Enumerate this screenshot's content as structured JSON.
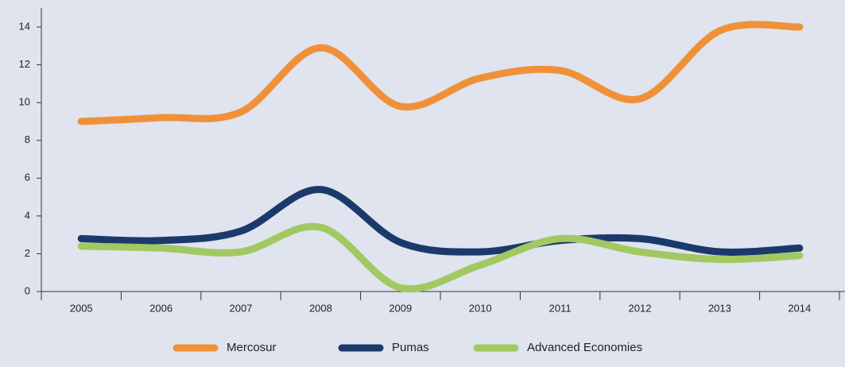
{
  "chart_data": {
    "type": "line",
    "categories": [
      "2005",
      "2006",
      "2007",
      "2008",
      "2009",
      "2010",
      "2011",
      "2012",
      "2013",
      "2014"
    ],
    "series": [
      {
        "name": "Mercosur",
        "color": "#f0913a",
        "values": [
          9.0,
          9.2,
          9.5,
          12.9,
          9.8,
          11.3,
          11.7,
          10.2,
          13.8,
          14.0
        ]
      },
      {
        "name": "Pumas",
        "color": "#1b3a6b",
        "values": [
          2.8,
          2.7,
          3.2,
          5.4,
          2.6,
          2.1,
          2.7,
          2.8,
          2.1,
          2.3
        ]
      },
      {
        "name": "Advanced Economies",
        "color": "#a2c862",
        "values": [
          2.4,
          2.3,
          2.1,
          3.4,
          0.2,
          1.4,
          2.8,
          2.1,
          1.7,
          1.9
        ]
      }
    ],
    "ylim": [
      0,
      14
    ],
    "yticks": [
      0,
      2,
      4,
      6,
      8,
      10,
      12,
      14
    ],
    "legend": "bottom"
  }
}
